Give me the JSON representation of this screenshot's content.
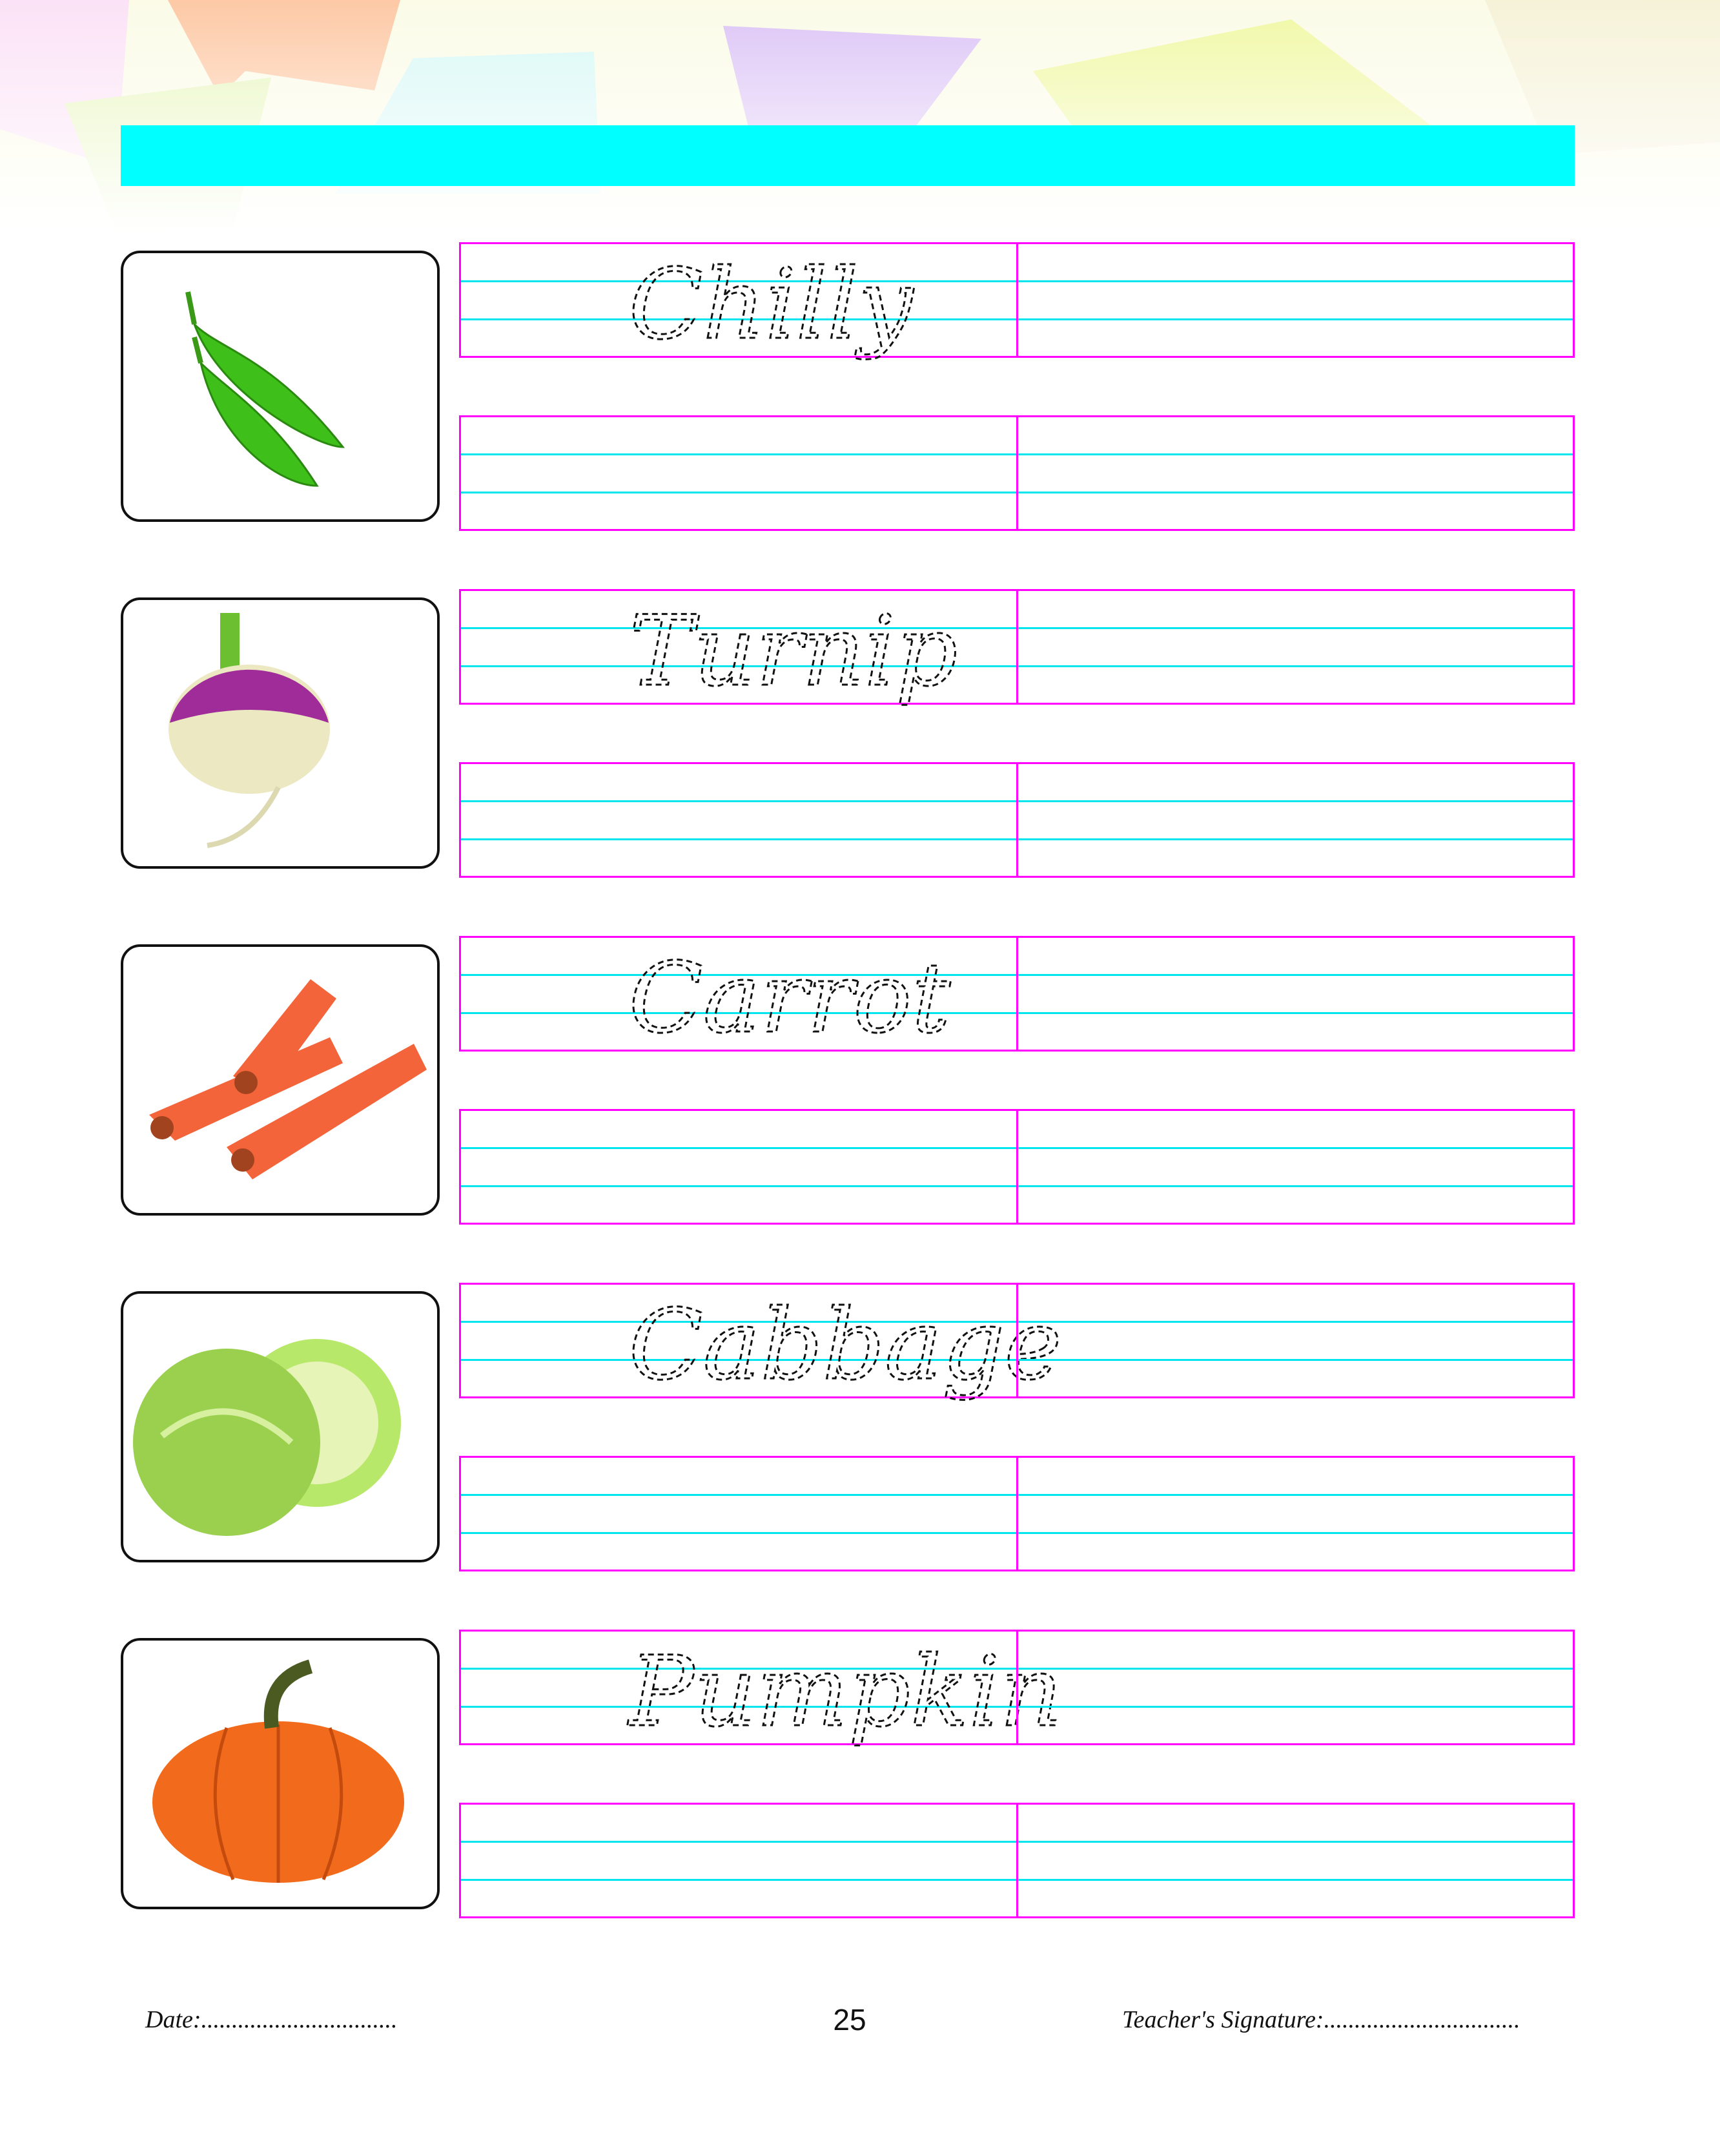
{
  "header": {
    "banner_color": "#00ffff"
  },
  "items": [
    {
      "word": "Chilly",
      "image": "green-chilli"
    },
    {
      "word": "Turnip",
      "image": "turnip"
    },
    {
      "word": "Carrot",
      "image": "carrot"
    },
    {
      "word": "Cabbage",
      "image": "cabbage"
    },
    {
      "word": "Pumpkin",
      "image": "pumpkin"
    }
  ],
  "colors": {
    "box_border": "#ff00ff",
    "guide_line": "#00ffff"
  },
  "footer": {
    "date_label": "Date:................................",
    "page_number": "25",
    "signature_label": "Teacher's Signature:................................"
  }
}
